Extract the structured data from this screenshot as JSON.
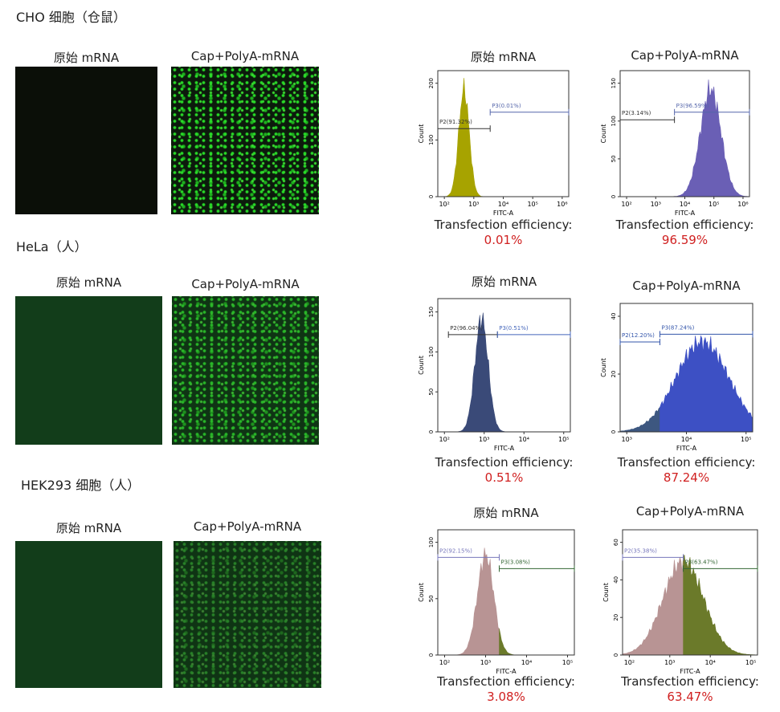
{
  "panels": [
    {
      "title": "CHO 细胞（仓鼠）",
      "images": [
        {
          "label": "原始 mRNA"
        },
        {
          "label": "Cap+PolyA-mRNA"
        }
      ],
      "histograms": [
        {
          "title": "原始 mRNA",
          "y_axis": "Count",
          "x_axis": "FITC-A",
          "yticks": [
            "0",
            "100",
            "200"
          ],
          "xticks": [
            "10²",
            "10³",
            "10⁴",
            "10⁵",
            "10⁶"
          ],
          "gates": [
            "P2(91.32%)",
            "P3(0.01%)"
          ],
          "efficiency_label": "Transfection efficiency:",
          "efficiency": "0.01%"
        },
        {
          "title": "Cap+PolyA-mRNA",
          "y_axis": "Count",
          "x_axis": "FITC-A",
          "yticks": [
            "0",
            "50",
            "100",
            "150"
          ],
          "xticks": [
            "10²",
            "10³",
            "10⁴",
            "10⁵",
            "10⁶"
          ],
          "gates": [
            "P2(3.14%)",
            "P3(96.59%)"
          ],
          "efficiency_label": "Transfection efficiency:",
          "efficiency": "96.59%"
        }
      ]
    },
    {
      "title": "HeLa（人）",
      "images": [
        {
          "label": "原始 mRNA"
        },
        {
          "label": "Cap+PolyA-mRNA"
        }
      ],
      "histograms": [
        {
          "title": "原始 mRNA",
          "y_axis": "Count",
          "x_axis": "FITC-A",
          "yticks": [
            "0",
            "50",
            "100",
            "150"
          ],
          "xticks": [
            "10²",
            "10³",
            "10⁴",
            "10⁵"
          ],
          "gates": [
            "P2(96.04%)",
            "P3(0.51%)"
          ],
          "efficiency_label": "Transfection efficiency:",
          "efficiency": "0.51%"
        },
        {
          "title": "Cap+PolyA-mRNA",
          "y_axis": "Count",
          "x_axis": "FITC-A",
          "yticks": [
            "0",
            "20",
            "40"
          ],
          "xticks": [
            "10³",
            "10⁴",
            "10⁵"
          ],
          "gates": [
            "P2(12.20%)",
            "P3(87.24%)"
          ],
          "efficiency_label": "Transfection efficiency:",
          "efficiency": "87.24%"
        }
      ]
    },
    {
      "title": "HEK293 细胞（人）",
      "images": [
        {
          "label": "原始 mRNA"
        },
        {
          "label": "Cap+PolyA-mRNA"
        }
      ],
      "histograms": [
        {
          "title": "原始 mRNA",
          "y_axis": "Count",
          "x_axis": "FITC-A",
          "yticks": [
            "0",
            "50",
            "100"
          ],
          "xticks": [
            "10²",
            "10³",
            "10⁴",
            "10⁵"
          ],
          "gates": [
            "P2(92.15%)",
            "P3(3.08%)"
          ],
          "efficiency_label": "Transfection efficiency:",
          "efficiency": "3.08%"
        },
        {
          "title": "Cap+PolyA-mRNA",
          "y_axis": "Count",
          "x_axis": "FITC-A",
          "yticks": [
            "0",
            "20",
            "40",
            "60"
          ],
          "xticks": [
            "10²",
            "10³",
            "10⁴",
            "10⁵"
          ],
          "gates": [
            "P2(35.38%)",
            "P3(63.47%)"
          ],
          "efficiency_label": "Transfection efficiency:",
          "efficiency": "63.47%"
        }
      ]
    }
  ]
}
